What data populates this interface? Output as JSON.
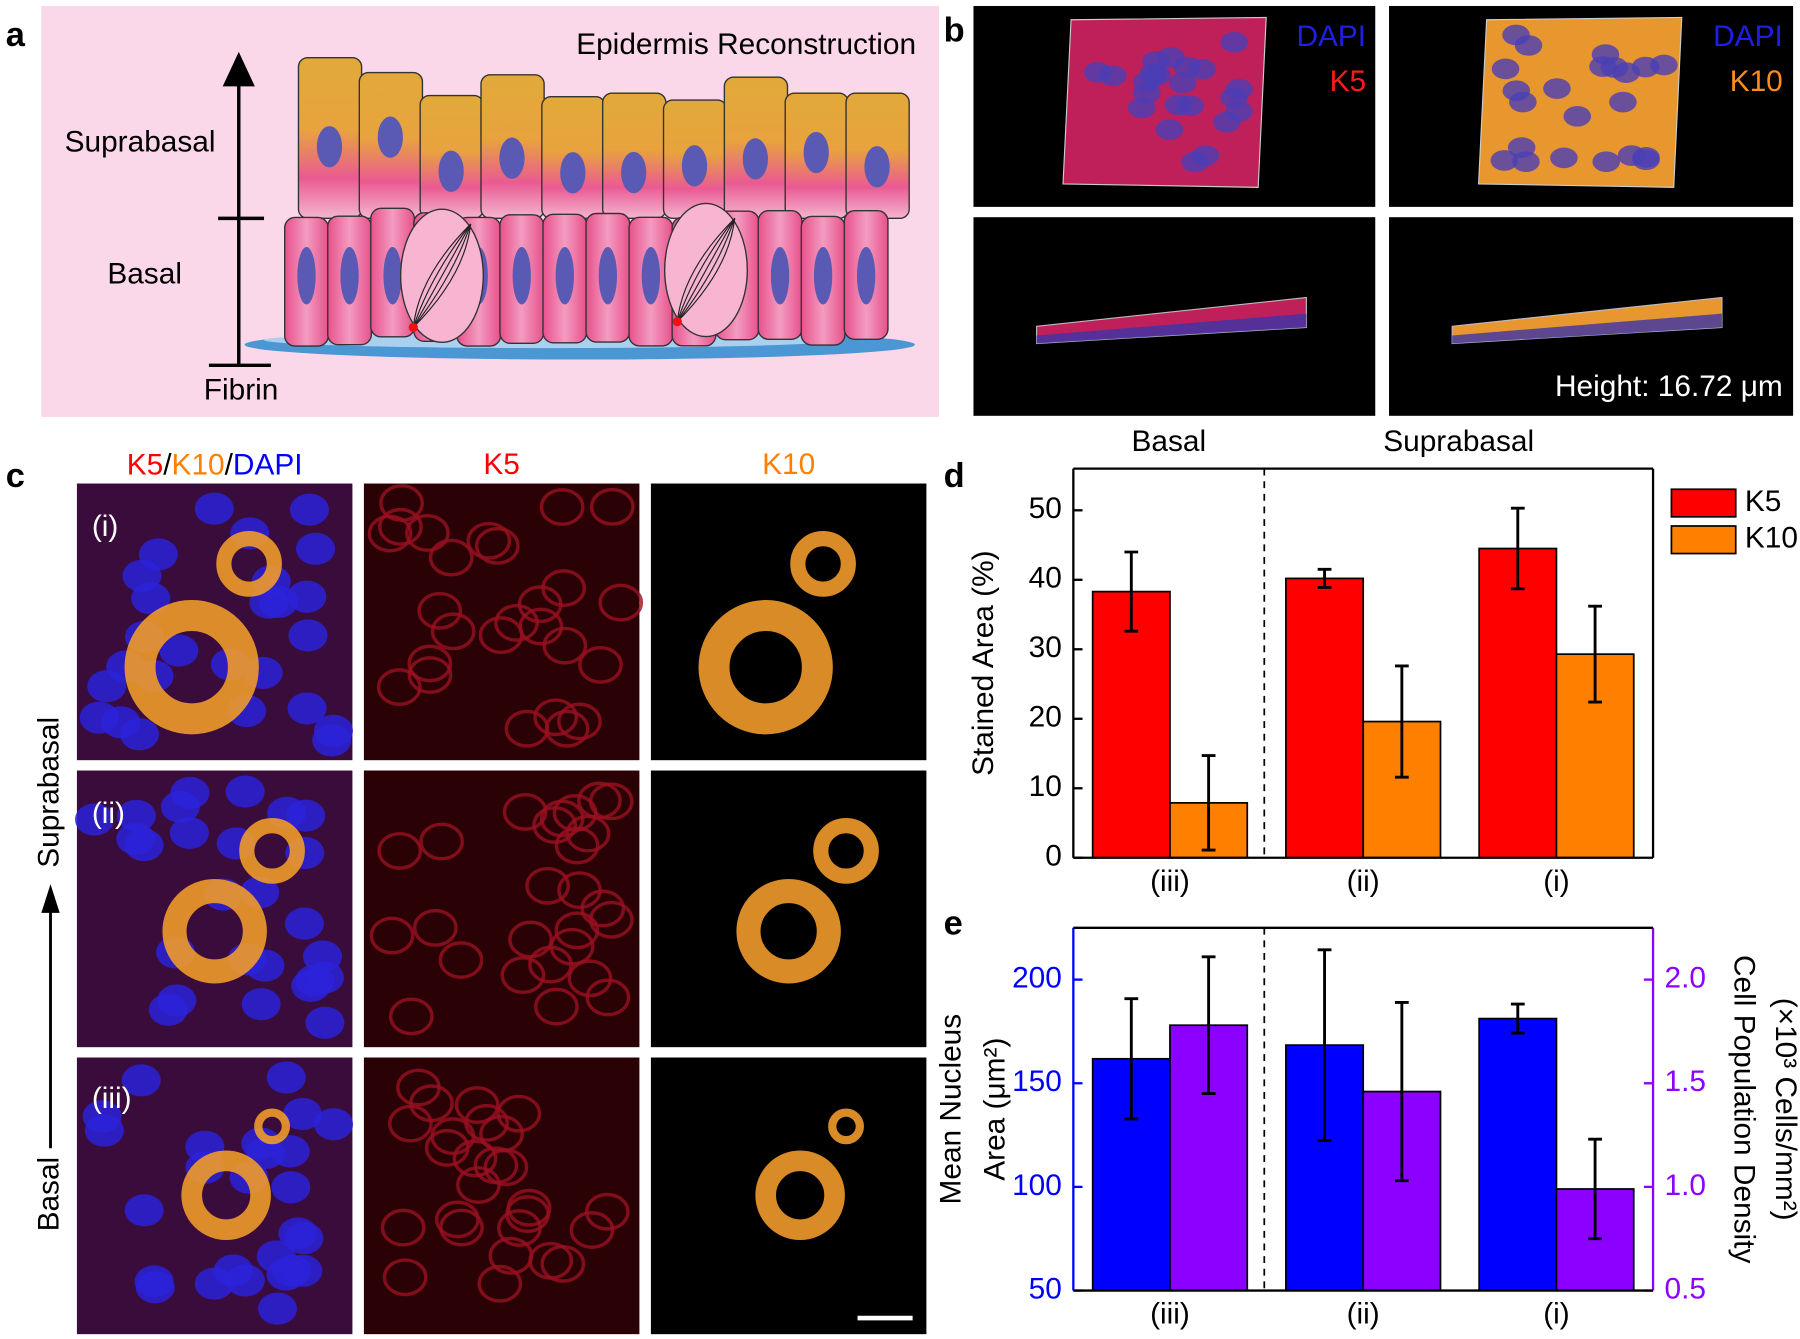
{
  "panel_labels": [
    "a",
    "b",
    "c",
    "d",
    "e"
  ],
  "panel_a": {
    "title": "Epidermis Reconstruction",
    "labels": [
      "Suprabasal",
      "Basal",
      "Fibrin"
    ]
  },
  "panel_b": {
    "images": [
      {
        "stains": [
          "DAPI",
          "K5"
        ]
      },
      {
        "stains": [
          "DAPI",
          "K10"
        ]
      }
    ],
    "height_label": "Height: 16.72 μm"
  },
  "panel_c": {
    "merge_header": [
      "K5",
      "/",
      "K10",
      "/",
      "DAPI"
    ],
    "headers": [
      "K5",
      "K10"
    ],
    "rows": [
      "(i)",
      "(ii)",
      "(iii)"
    ],
    "side_labels": [
      "Suprabasal",
      "Basal"
    ]
  },
  "chart_data": [
    {
      "type": "bar",
      "group_labels": [
        "Basal",
        "Suprabasal"
      ],
      "categories": [
        "(iii)",
        "(ii)",
        "(i)"
      ],
      "ylabel": "Stained Area (%)",
      "ylim": [
        0,
        56
      ],
      "yticks": [
        0,
        10,
        20,
        30,
        40,
        50
      ],
      "legend": "right",
      "series": [
        {
          "name": "K5",
          "color": "#ff0000",
          "values": [
            38.3,
            40.2,
            44.5
          ],
          "errors": [
            5.7,
            1.3,
            5.8
          ]
        },
        {
          "name": "K10",
          "color": "#ff8000",
          "values": [
            7.9,
            19.6,
            29.3
          ],
          "errors": [
            6.8,
            8.0,
            6.9
          ]
        }
      ]
    },
    {
      "type": "bar",
      "categories": [
        "(iii)",
        "(ii)",
        "(i)"
      ],
      "ylabel": [
        "Mean Nucleus",
        "Area (μm²)"
      ],
      "y2label": [
        "Cell Population Density",
        "(×10³ Cells/mm²)"
      ],
      "ylim": [
        50,
        225
      ],
      "yticks": [
        50,
        100,
        150,
        200
      ],
      "ycolor": "#0000ff",
      "y2lim": [
        0.5,
        2.25
      ],
      "y2ticks": [
        0.5,
        {
          "value": 1,
          "label": "1.0"
        },
        1.5,
        {
          "value": 2,
          "label": "2.0"
        }
      ],
      "y2color": "#8c00ff",
      "series": [
        {
          "color": "#0000ff",
          "values": [
            161.8,
            168.4,
            181.2
          ],
          "errors": [
            29,
            46,
            7
          ]
        },
        {
          "color": "#8c00ff",
          "axis": "y2",
          "values": [
            1.78,
            1.46,
            0.99
          ],
          "errors": [
            0.33,
            0.43,
            0.24
          ]
        }
      ]
    }
  ]
}
